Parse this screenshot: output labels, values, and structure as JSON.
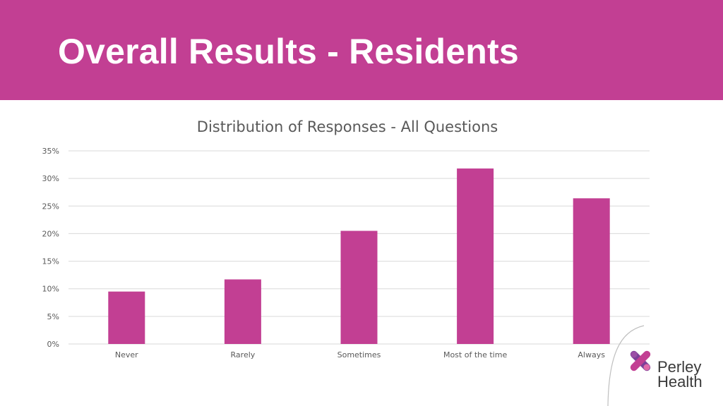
{
  "slide": {
    "title": "Overall Results - Residents"
  },
  "colors": {
    "header": "#c23f93",
    "bar": "#c23f93",
    "grid": "#d9d9d9",
    "axis_text": "#595959"
  },
  "chart_data": {
    "type": "bar",
    "title": "Distribution of Responses - All Questions",
    "categories": [
      "Never",
      "Rarely",
      "Sometimes",
      "Most of the time",
      "Always"
    ],
    "values": [
      9.5,
      11.7,
      20.5,
      31.8,
      26.4
    ],
    "unit": "%",
    "ylim": [
      0,
      35
    ],
    "yticks": [
      0,
      5,
      10,
      15,
      20,
      25,
      30,
      35
    ],
    "ytick_labels": [
      "0%",
      "5%",
      "10%",
      "15%",
      "20%",
      "25%",
      "30%",
      "35%"
    ],
    "grid": true,
    "legend": "none",
    "xlabel": "",
    "ylabel": ""
  },
  "logo": {
    "line1": "Perley",
    "line2": "Health",
    "icon": "perley-health-x-logo-icon"
  }
}
